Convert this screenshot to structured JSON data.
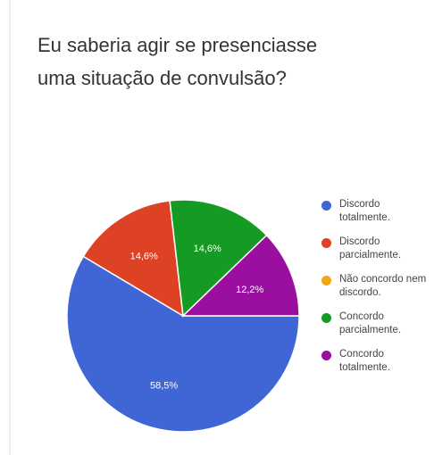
{
  "chart_data": {
    "type": "pie",
    "title": "Eu saberia agir se presenciasse uma situação de convulsão?",
    "categories": [
      "Discordo totalmente.",
      "Discordo parcialmente.",
      "Não concordo nem discordo.",
      "Concordo parcialmente.",
      "Concordo totalmente."
    ],
    "values": [
      58.5,
      14.6,
      0,
      14.6,
      12.2
    ],
    "data_labels": [
      "58,5%",
      "14,6%",
      "",
      "14,6%",
      "12,2%"
    ],
    "colors": [
      "#3f66d4",
      "#de4224",
      "#f2a715",
      "#159a23",
      "#9a0fa0"
    ],
    "legend_position": "right"
  }
}
